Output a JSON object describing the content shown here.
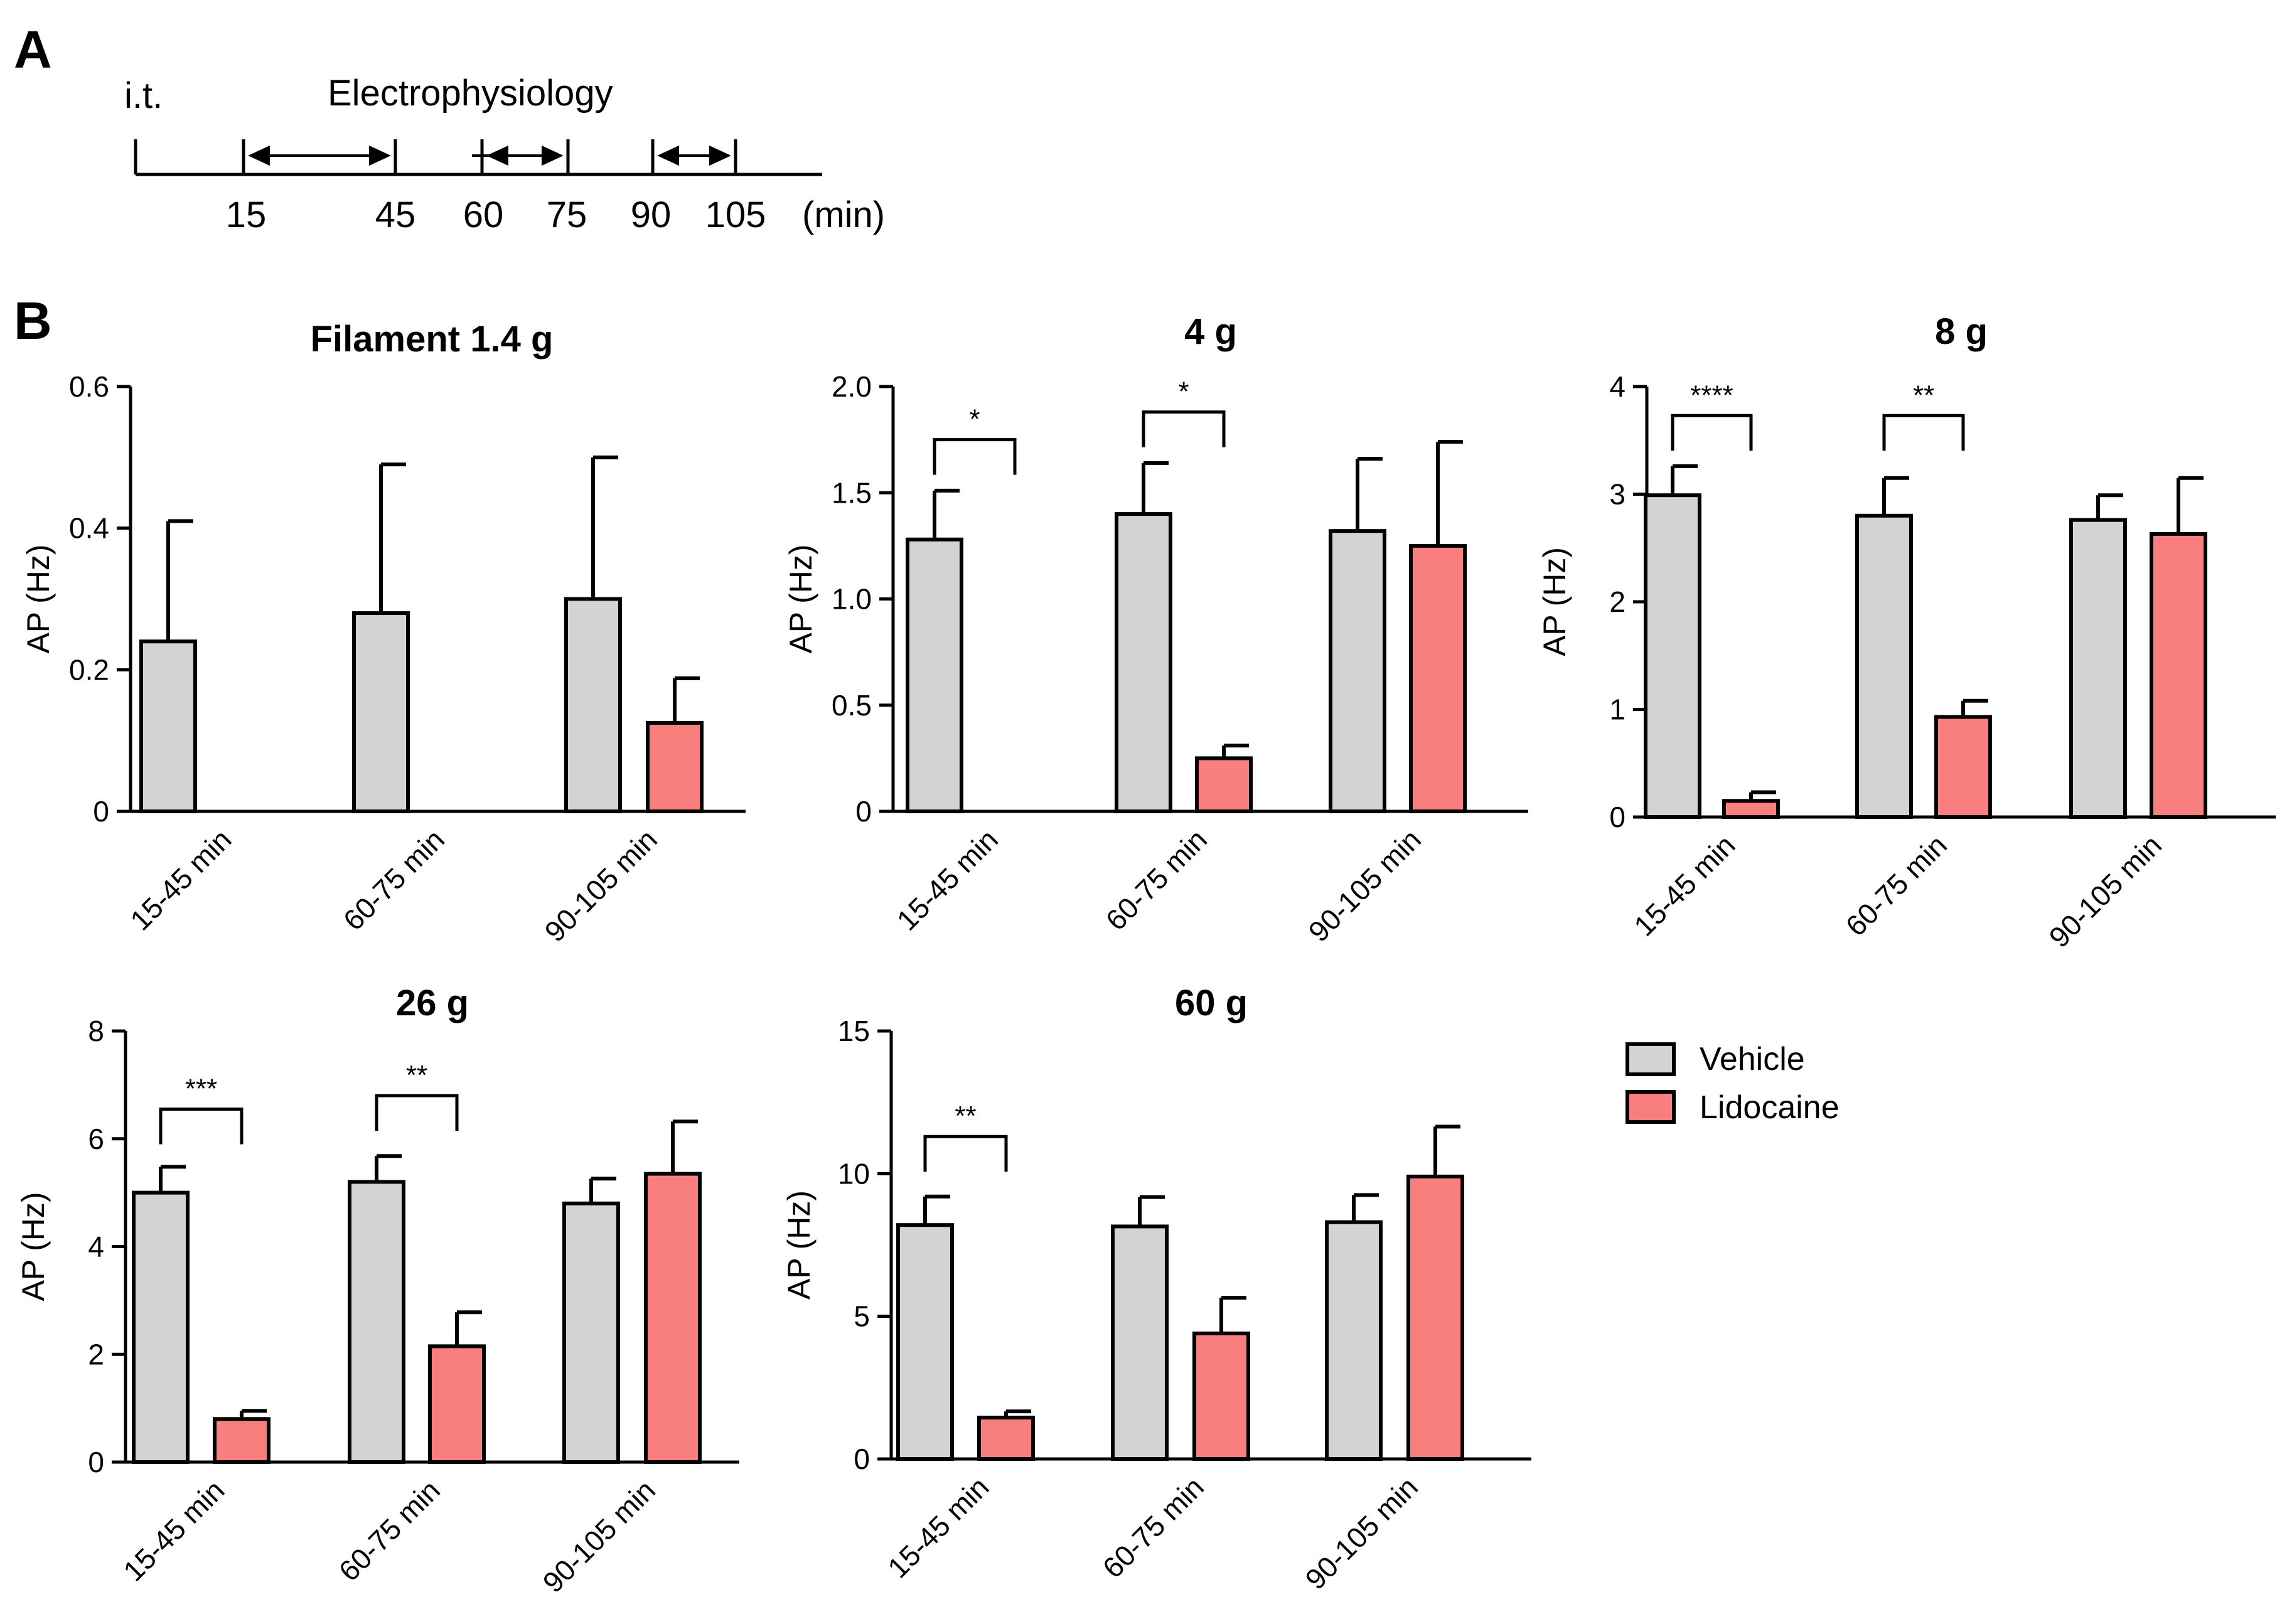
{
  "panel_a": {
    "label": "A",
    "injection_label": "i.t.",
    "recording_label": "Electrophysiology",
    "ticks": [
      "15",
      "45",
      "60",
      "75",
      "90",
      "105"
    ],
    "unit": "(min)"
  },
  "panel_b": {
    "label": "B"
  },
  "colors": {
    "vehicle": "#d3d3d3",
    "lidocaine": "#f97f7f",
    "stroke": "#000000"
  },
  "chart_data": [
    {
      "type": "bar",
      "title": "Filament 1.4 g",
      "ylabel": "AP (Hz)",
      "xlabel": "",
      "ylim": [
        0,
        0.6
      ],
      "yticks": [
        0,
        0.2,
        0.4,
        0.6
      ],
      "ytick_labels": [
        "0",
        "0.2",
        "0.4",
        "0.6"
      ],
      "categories": [
        "15-45 min",
        "60-75 min",
        "90-105 min"
      ],
      "series": [
        {
          "name": "Vehicle",
          "values": [
            0.24,
            0.28,
            0.3
          ],
          "errors": [
            0.17,
            0.21,
            0.2
          ]
        },
        {
          "name": "Lidocaine",
          "values": [
            0,
            0,
            0.125
          ],
          "errors": [
            0,
            0,
            0.063
          ]
        }
      ],
      "annotations": []
    },
    {
      "type": "bar",
      "title": "4 g",
      "ylabel": "AP (Hz)",
      "xlabel": "",
      "ylim": [
        0,
        2.0
      ],
      "yticks": [
        0,
        0.5,
        1.0,
        1.5,
        2.0
      ],
      "ytick_labels": [
        "0",
        "0.5",
        "1.0",
        "1.5",
        "2.0"
      ],
      "categories": [
        "15-45 min",
        "60-75 min",
        "90-105 min"
      ],
      "series": [
        {
          "name": "Vehicle",
          "values": [
            1.28,
            1.4,
            1.32
          ],
          "errors": [
            0.23,
            0.24,
            0.34
          ]
        },
        {
          "name": "Lidocaine",
          "values": [
            0,
            0.25,
            1.25
          ],
          "errors": [
            0,
            0.06,
            0.49
          ]
        }
      ],
      "annotations": [
        {
          "category": 0,
          "text": "*",
          "level": 1.75
        },
        {
          "category": 1,
          "text": "*",
          "level": 1.88
        }
      ]
    },
    {
      "type": "bar",
      "title": "8 g",
      "ylabel": "AP (Hz)",
      "xlabel": "",
      "ylim": [
        0,
        4
      ],
      "yticks": [
        0,
        1,
        2,
        3,
        4
      ],
      "ytick_labels": [
        "0",
        "1",
        "2",
        "3",
        "4"
      ],
      "categories": [
        "15-45 min",
        "60-75 min",
        "90-105 min"
      ],
      "series": [
        {
          "name": "Vehicle",
          "values": [
            2.99,
            2.8,
            2.76
          ],
          "errors": [
            0.27,
            0.35,
            0.23
          ]
        },
        {
          "name": "Lidocaine",
          "values": [
            0.15,
            0.93,
            2.63
          ],
          "errors": [
            0.08,
            0.15,
            0.52
          ]
        }
      ],
      "annotations": [
        {
          "category": 0,
          "text": "****",
          "level": 3.73
        },
        {
          "category": 1,
          "text": "**",
          "level": 3.73
        }
      ]
    },
    {
      "type": "bar",
      "title": "26 g",
      "ylabel": "AP (Hz)",
      "xlabel": "",
      "ylim": [
        0,
        8
      ],
      "yticks": [
        0,
        2,
        4,
        6,
        8
      ],
      "ytick_labels": [
        "0",
        "2",
        "4",
        "6",
        "8"
      ],
      "categories": [
        "15-45 min",
        "60-75 min",
        "90-105 min"
      ],
      "series": [
        {
          "name": "Vehicle",
          "values": [
            5.0,
            5.2,
            4.8
          ],
          "errors": [
            0.48,
            0.48,
            0.46
          ]
        },
        {
          "name": "Lidocaine",
          "values": [
            0.8,
            2.15,
            5.35
          ],
          "errors": [
            0.15,
            0.63,
            0.97
          ]
        }
      ],
      "annotations": [
        {
          "category": 0,
          "text": "***",
          "level": 6.55
        },
        {
          "category": 1,
          "text": "**",
          "level": 6.8
        }
      ]
    },
    {
      "type": "bar",
      "title": "60 g",
      "ylabel": "AP (Hz)",
      "xlabel": "",
      "ylim": [
        0,
        15
      ],
      "yticks": [
        0,
        5,
        10,
        15
      ],
      "ytick_labels": [
        "0",
        "5",
        "10",
        "15"
      ],
      "categories": [
        "15-45 min",
        "60-75 min",
        "90-105 min"
      ],
      "series": [
        {
          "name": "Vehicle",
          "values": [
            8.2,
            8.15,
            8.3
          ],
          "errors": [
            1.0,
            1.03,
            0.95
          ]
        },
        {
          "name": "Lidocaine",
          "values": [
            1.45,
            4.4,
            9.9
          ],
          "errors": [
            0.22,
            1.25,
            1.75
          ]
        }
      ],
      "annotations": [
        {
          "category": 0,
          "text": "**",
          "level": 11.3
        }
      ]
    }
  ],
  "legend": {
    "items": [
      {
        "name": "Vehicle",
        "color": "#d3d3d3"
      },
      {
        "name": "Lidocaine",
        "color": "#f97f7f"
      }
    ]
  }
}
